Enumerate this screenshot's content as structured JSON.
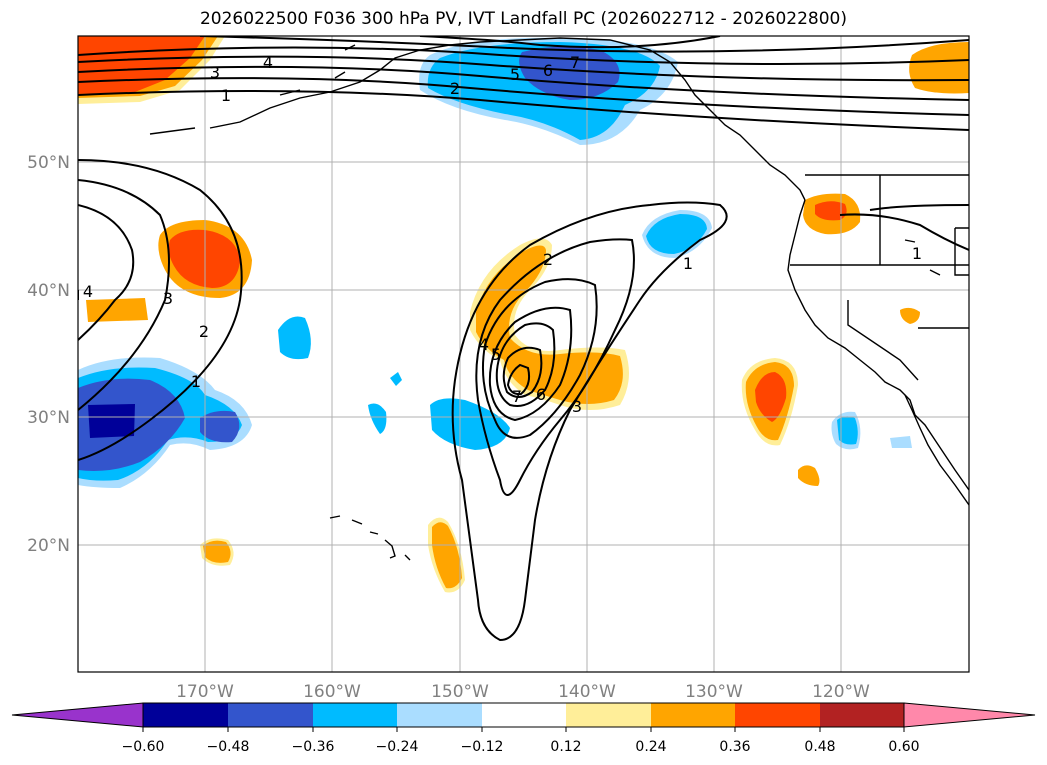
{
  "title": "2026022500 F036 300 hPa PV, IVT Landfall PC (2026022712 - 2026022800)",
  "lat_labels": [
    "50°N",
    "40°N",
    "30°N",
    "20°N"
  ],
  "lon_labels": [
    "170°W",
    "160°W",
    "150°W",
    "140°W",
    "130°W",
    "120°W"
  ],
  "colorbar": {
    "ticks": [
      "−0.60",
      "−0.48",
      "−0.36",
      "−0.24",
      "−0.12",
      "0.12",
      "0.24",
      "0.36",
      "0.48",
      "0.60"
    ],
    "colors": [
      "#9933cc",
      "#000099",
      "#3355cc",
      "#00bbff",
      "#aaddff",
      "#ffffff",
      "#ffee99",
      "#ffa500",
      "#ff4500",
      "#b22222",
      "#ff88aa"
    ]
  },
  "contour_labels": {
    "north_1": "1",
    "north_2": "2",
    "north_3": "3",
    "north_4": "4",
    "north_5": "5",
    "north_6": "6",
    "north_7": "7",
    "west_1": "1",
    "west_2": "2",
    "west_3": "3",
    "west_4": "4",
    "east_1": "1",
    "c_1": "1",
    "c_2": "2",
    "c_3": "3",
    "c_4": "4",
    "c_5": "5",
    "c_6": "6",
    "c_7": "7"
  }
}
